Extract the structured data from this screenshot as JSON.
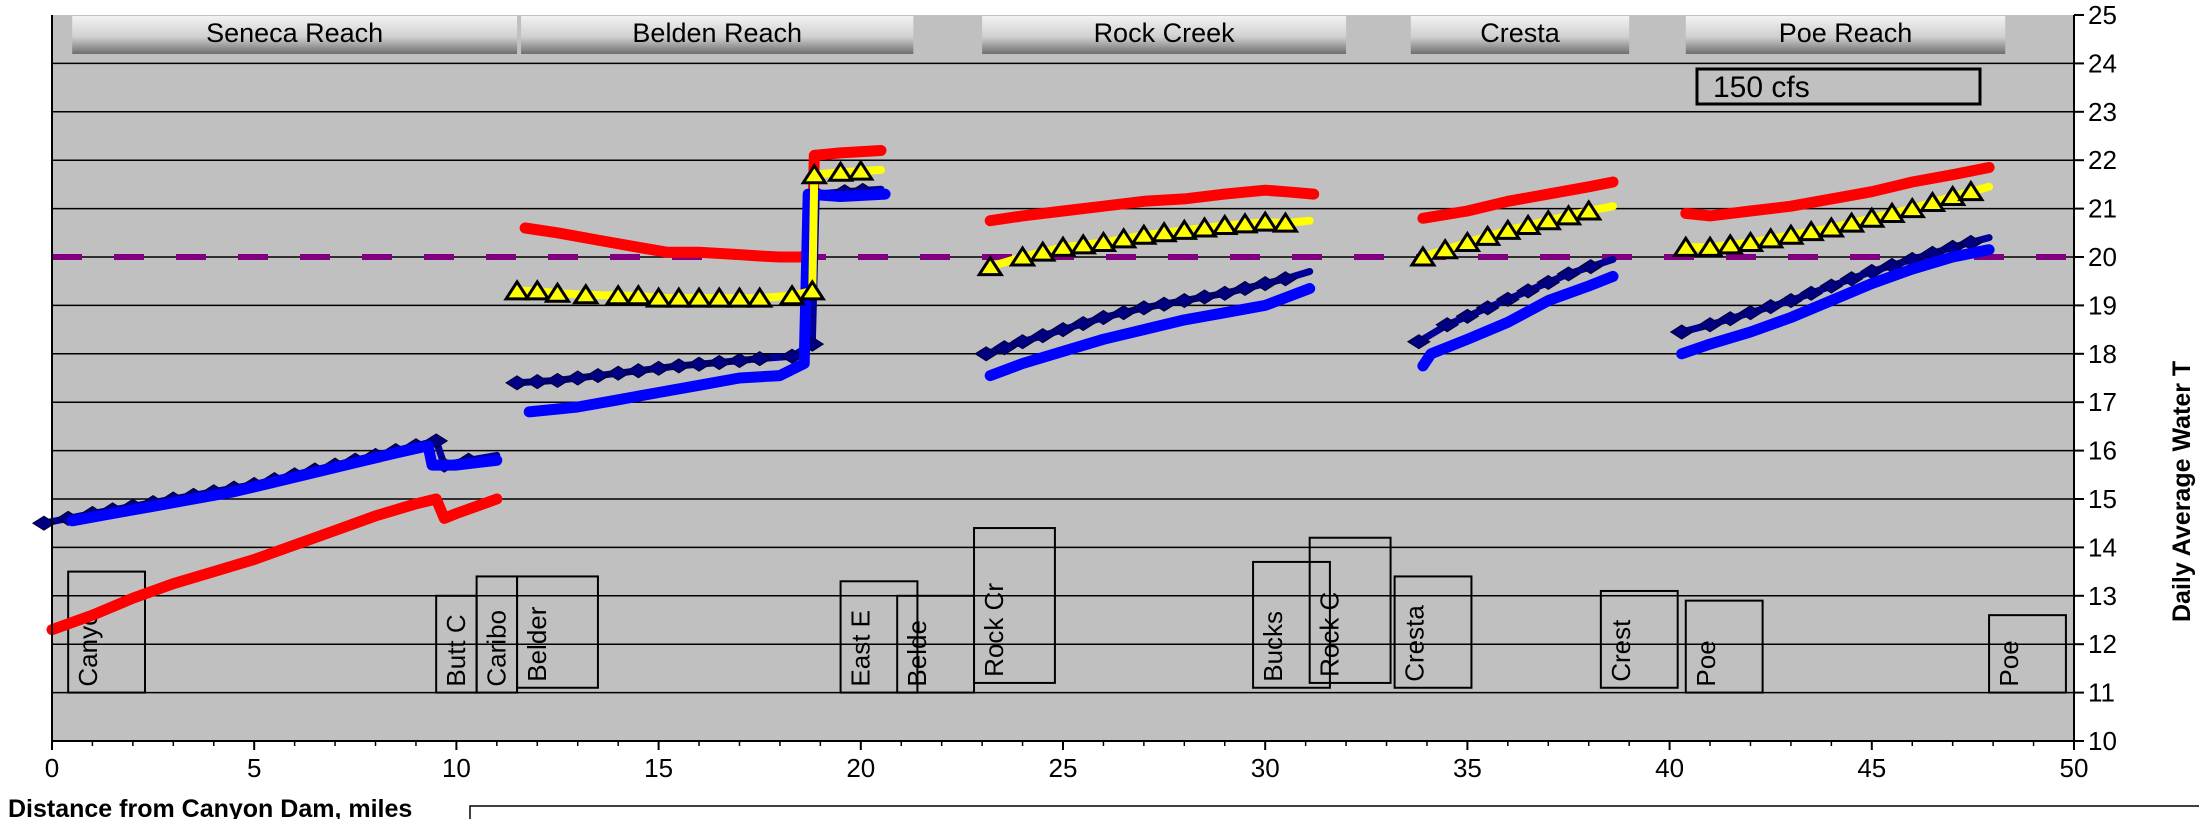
{
  "chart_data": {
    "type": "line",
    "flow_label": "150 cfs",
    "xlabel": "Distance from Canyon Dam, miles",
    "ylabel": "Daily Average Water T",
    "xlim": [
      0,
      50
    ],
    "ylim": [
      10,
      25
    ],
    "x_ticks": [
      "0",
      "5",
      "10",
      "15",
      "20",
      "25",
      "30",
      "35",
      "40",
      "45",
      "50"
    ],
    "y_ticks": [
      "10",
      "11",
      "12",
      "13",
      "14",
      "15",
      "16",
      "17",
      "18",
      "19",
      "20",
      "21",
      "22",
      "23",
      "24",
      "25"
    ],
    "reference_line": {
      "y": 20,
      "color": "#800080"
    },
    "grid": true,
    "reaches": [
      {
        "name": "Seneca Reach",
        "x0": 0.5,
        "x1": 11.5
      },
      {
        "name": "Belden Reach",
        "x0": 11.6,
        "x1": 21.3
      },
      {
        "name": "Rock Creek",
        "x0": 23.0,
        "x1": 32.0
      },
      {
        "name": "Cresta",
        "x0": 33.6,
        "x1": 39.0
      },
      {
        "name": "Poe Reach",
        "x0": 40.4,
        "x1": 48.3
      }
    ],
    "stations": [
      {
        "label": "Canyo",
        "x0": 0.4,
        "x1": 2.3,
        "y0": 11.0,
        "y1": 13.5
      },
      {
        "label": "Butt C",
        "x0": 9.5,
        "x1": 10.5,
        "y0": 11.0,
        "y1": 13.0
      },
      {
        "label": "Caribo",
        "x0": 10.5,
        "x1": 11.5,
        "y0": 11.0,
        "y1": 13.4
      },
      {
        "label": "Belder",
        "x0": 11.5,
        "x1": 13.5,
        "y0": 11.1,
        "y1": 13.4
      },
      {
        "label": "East E",
        "x0": 19.5,
        "x1": 21.4,
        "y0": 11.0,
        "y1": 13.3
      },
      {
        "label": "Belde",
        "x0": 20.9,
        "x1": 22.8,
        "y0": 11.0,
        "y1": 13.0
      },
      {
        "label": "Rock Cr",
        "x0": 22.8,
        "x1": 24.8,
        "y0": 11.2,
        "y1": 14.4
      },
      {
        "label": "Bucks",
        "x0": 29.7,
        "x1": 31.6,
        "y0": 11.1,
        "y1": 13.7
      },
      {
        "label": "Rock C",
        "x0": 31.1,
        "x1": 33.1,
        "y0": 11.2,
        "y1": 14.2
      },
      {
        "label": "Cresta",
        "x0": 33.2,
        "x1": 35.1,
        "y0": 11.1,
        "y1": 13.4
      },
      {
        "label": "Crest",
        "x0": 38.3,
        "x1": 40.2,
        "y0": 11.1,
        "y1": 13.1
      },
      {
        "label": "Poe",
        "x0": 40.4,
        "x1": 42.3,
        "y0": 11.0,
        "y1": 12.9
      },
      {
        "label": "Poe",
        "x0": 47.9,
        "x1": 49.8,
        "y0": 11.0,
        "y1": 12.6
      }
    ],
    "series": [
      {
        "color": "#ff0000",
        "marker": "none",
        "segments": [
          [
            [
              0,
              12.3
            ],
            [
              1,
              12.6
            ],
            [
              2,
              12.95
            ],
            [
              3,
              13.25
            ],
            [
              4,
              13.5
            ],
            [
              5,
              13.75
            ],
            [
              6,
              14.05
            ],
            [
              7,
              14.35
            ],
            [
              8,
              14.65
            ],
            [
              9,
              14.9
            ],
            [
              9.5,
              15.0
            ],
            [
              9.7,
              14.6
            ],
            [
              10,
              14.7
            ],
            [
              11,
              15.0
            ]
          ],
          [
            [
              11.7,
              20.6
            ],
            [
              12.5,
              20.5
            ],
            [
              13.5,
              20.35
            ],
            [
              14.5,
              20.2
            ],
            [
              15.2,
              20.1
            ],
            [
              16,
              20.1
            ],
            [
              17,
              20.05
            ],
            [
              17.5,
              20.02
            ],
            [
              18,
              20.0
            ],
            [
              18.5,
              20.0
            ],
            [
              18.8,
              20.05
            ],
            [
              18.85,
              22.1
            ],
            [
              19.5,
              22.15
            ],
            [
              20.5,
              22.2
            ]
          ],
          [
            [
              23.2,
              20.75
            ],
            [
              24,
              20.85
            ],
            [
              25,
              20.95
            ],
            [
              26,
              21.05
            ],
            [
              27,
              21.15
            ],
            [
              28,
              21.2
            ],
            [
              29,
              21.3
            ],
            [
              30,
              21.38
            ],
            [
              30.5,
              21.35
            ],
            [
              31.2,
              21.3
            ]
          ],
          [
            [
              33.9,
              20.8
            ],
            [
              35,
              20.95
            ],
            [
              36,
              21.15
            ],
            [
              37,
              21.3
            ],
            [
              38,
              21.45
            ],
            [
              38.6,
              21.55
            ]
          ],
          [
            [
              40.4,
              20.9
            ],
            [
              41,
              20.85
            ],
            [
              42,
              20.95
            ],
            [
              43,
              21.05
            ],
            [
              44,
              21.2
            ],
            [
              45,
              21.35
            ],
            [
              46,
              21.55
            ],
            [
              47,
              21.7
            ],
            [
              47.9,
              21.85
            ]
          ]
        ]
      },
      {
        "color": "#000099",
        "marker": "diamond",
        "segments": [
          [
            [
              -0.2,
              14.5
            ],
            [
              1,
              14.7
            ],
            [
              2,
              14.85
            ],
            [
              3,
              15.0
            ],
            [
              4,
              15.15
            ],
            [
              5,
              15.3
            ],
            [
              6,
              15.5
            ],
            [
              7,
              15.7
            ],
            [
              8,
              15.9
            ],
            [
              9,
              16.1
            ],
            [
              9.5,
              16.2
            ],
            [
              9.7,
              15.7
            ],
            [
              10.3,
              15.8
            ],
            [
              11,
              15.9
            ]
          ],
          [
            [
              11.5,
              17.4
            ],
            [
              12.5,
              17.45
            ],
            [
              13.5,
              17.55
            ],
            [
              14.5,
              17.65
            ],
            [
              15.5,
              17.75
            ],
            [
              16.5,
              17.82
            ],
            [
              17.5,
              17.9
            ],
            [
              18.3,
              17.95
            ],
            [
              18.8,
              18.2
            ],
            [
              18.9,
              21.3
            ],
            [
              19.6,
              21.35
            ],
            [
              20.5,
              21.4
            ]
          ],
          [
            [
              23.1,
              18.0
            ],
            [
              24,
              18.25
            ],
            [
              25,
              18.5
            ],
            [
              26,
              18.75
            ],
            [
              27,
              18.95
            ],
            [
              28,
              19.1
            ],
            [
              29,
              19.25
            ],
            [
              30,
              19.45
            ],
            [
              30.5,
              19.55
            ],
            [
              31.1,
              19.7
            ]
          ],
          [
            [
              33.8,
              18.25
            ],
            [
              34.5,
              18.6
            ],
            [
              35.5,
              18.95
            ],
            [
              36.5,
              19.3
            ],
            [
              37.5,
              19.65
            ],
            [
              38.6,
              19.95
            ]
          ],
          [
            [
              40.3,
              18.45
            ],
            [
              41,
              18.6
            ],
            [
              42,
              18.85
            ],
            [
              43,
              19.1
            ],
            [
              44,
              19.4
            ],
            [
              45,
              19.7
            ],
            [
              46,
              19.95
            ],
            [
              47,
              20.2
            ],
            [
              47.9,
              20.4
            ]
          ]
        ]
      },
      {
        "color": "#0000ff",
        "marker": "none",
        "segments": [
          [
            [
              0.5,
              14.55
            ],
            [
              1.5,
              14.7
            ],
            [
              2.5,
              14.85
            ],
            [
              3.5,
              15.0
            ],
            [
              4.5,
              15.15
            ],
            [
              5.5,
              15.35
            ],
            [
              6.5,
              15.55
            ],
            [
              7.5,
              15.75
            ],
            [
              8.5,
              15.95
            ],
            [
              9.3,
              16.1
            ],
            [
              9.4,
              15.7
            ],
            [
              10,
              15.7
            ],
            [
              11,
              15.8
            ]
          ],
          [
            [
              11.8,
              16.8
            ],
            [
              13,
              16.9
            ],
            [
              14,
              17.05
            ],
            [
              15,
              17.2
            ],
            [
              16,
              17.35
            ],
            [
              17,
              17.5
            ],
            [
              18,
              17.55
            ],
            [
              18.6,
              17.8
            ],
            [
              18.7,
              21.3
            ],
            [
              19.5,
              21.25
            ],
            [
              20.6,
              21.3
            ]
          ],
          [
            [
              23.2,
              17.55
            ],
            [
              24,
              17.8
            ],
            [
              25,
              18.05
            ],
            [
              26,
              18.3
            ],
            [
              27,
              18.5
            ],
            [
              28,
              18.7
            ],
            [
              29,
              18.85
            ],
            [
              30,
              19.0
            ],
            [
              31.1,
              19.35
            ]
          ],
          [
            [
              33.9,
              17.75
            ],
            [
              34.1,
              18.0
            ],
            [
              35,
              18.3
            ],
            [
              36,
              18.65
            ],
            [
              37,
              19.1
            ],
            [
              38,
              19.4
            ],
            [
              38.6,
              19.6
            ]
          ],
          [
            [
              40.3,
              18.0
            ],
            [
              41,
              18.2
            ],
            [
              42,
              18.45
            ],
            [
              43,
              18.75
            ],
            [
              44,
              19.1
            ],
            [
              45,
              19.45
            ],
            [
              46,
              19.75
            ],
            [
              47,
              20.0
            ],
            [
              47.9,
              20.15
            ]
          ]
        ]
      },
      {
        "color": "#ffff00",
        "marker": "triangle",
        "segments": [
          [
            [
              11.5,
              19.3
            ],
            [
              12,
              19.3
            ],
            [
              12.5,
              19.25
            ],
            [
              13.2,
              19.22
            ],
            [
              14,
              19.2
            ],
            [
              14.5,
              19.2
            ],
            [
              15,
              19.15
            ],
            [
              15.5,
              19.15
            ],
            [
              16.5,
              19.15
            ],
            [
              17.5,
              19.15
            ],
            [
              18.3,
              19.2
            ],
            [
              18.8,
              19.3
            ],
            [
              18.85,
              21.7
            ],
            [
              19.5,
              21.75
            ],
            [
              20.5,
              21.8
            ]
          ],
          [
            [
              23.2,
              19.8
            ],
            [
              24,
              20.0
            ],
            [
              25,
              20.2
            ],
            [
              26,
              20.3
            ],
            [
              27,
              20.45
            ],
            [
              28,
              20.55
            ],
            [
              29,
              20.65
            ],
            [
              30,
              20.72
            ],
            [
              30.5,
              20.7
            ],
            [
              31.1,
              20.75
            ]
          ],
          [
            [
              33.9,
              20.0
            ],
            [
              35,
              20.3
            ],
            [
              36,
              20.55
            ],
            [
              37,
              20.75
            ],
            [
              38,
              20.95
            ],
            [
              38.6,
              21.05
            ]
          ],
          [
            [
              40.4,
              20.2
            ],
            [
              41,
              20.2
            ],
            [
              42,
              20.3
            ],
            [
              43,
              20.45
            ],
            [
              44,
              20.6
            ],
            [
              45,
              20.8
            ],
            [
              46,
              21.0
            ],
            [
              47,
              21.25
            ],
            [
              47.9,
              21.45
            ]
          ]
        ]
      }
    ]
  }
}
